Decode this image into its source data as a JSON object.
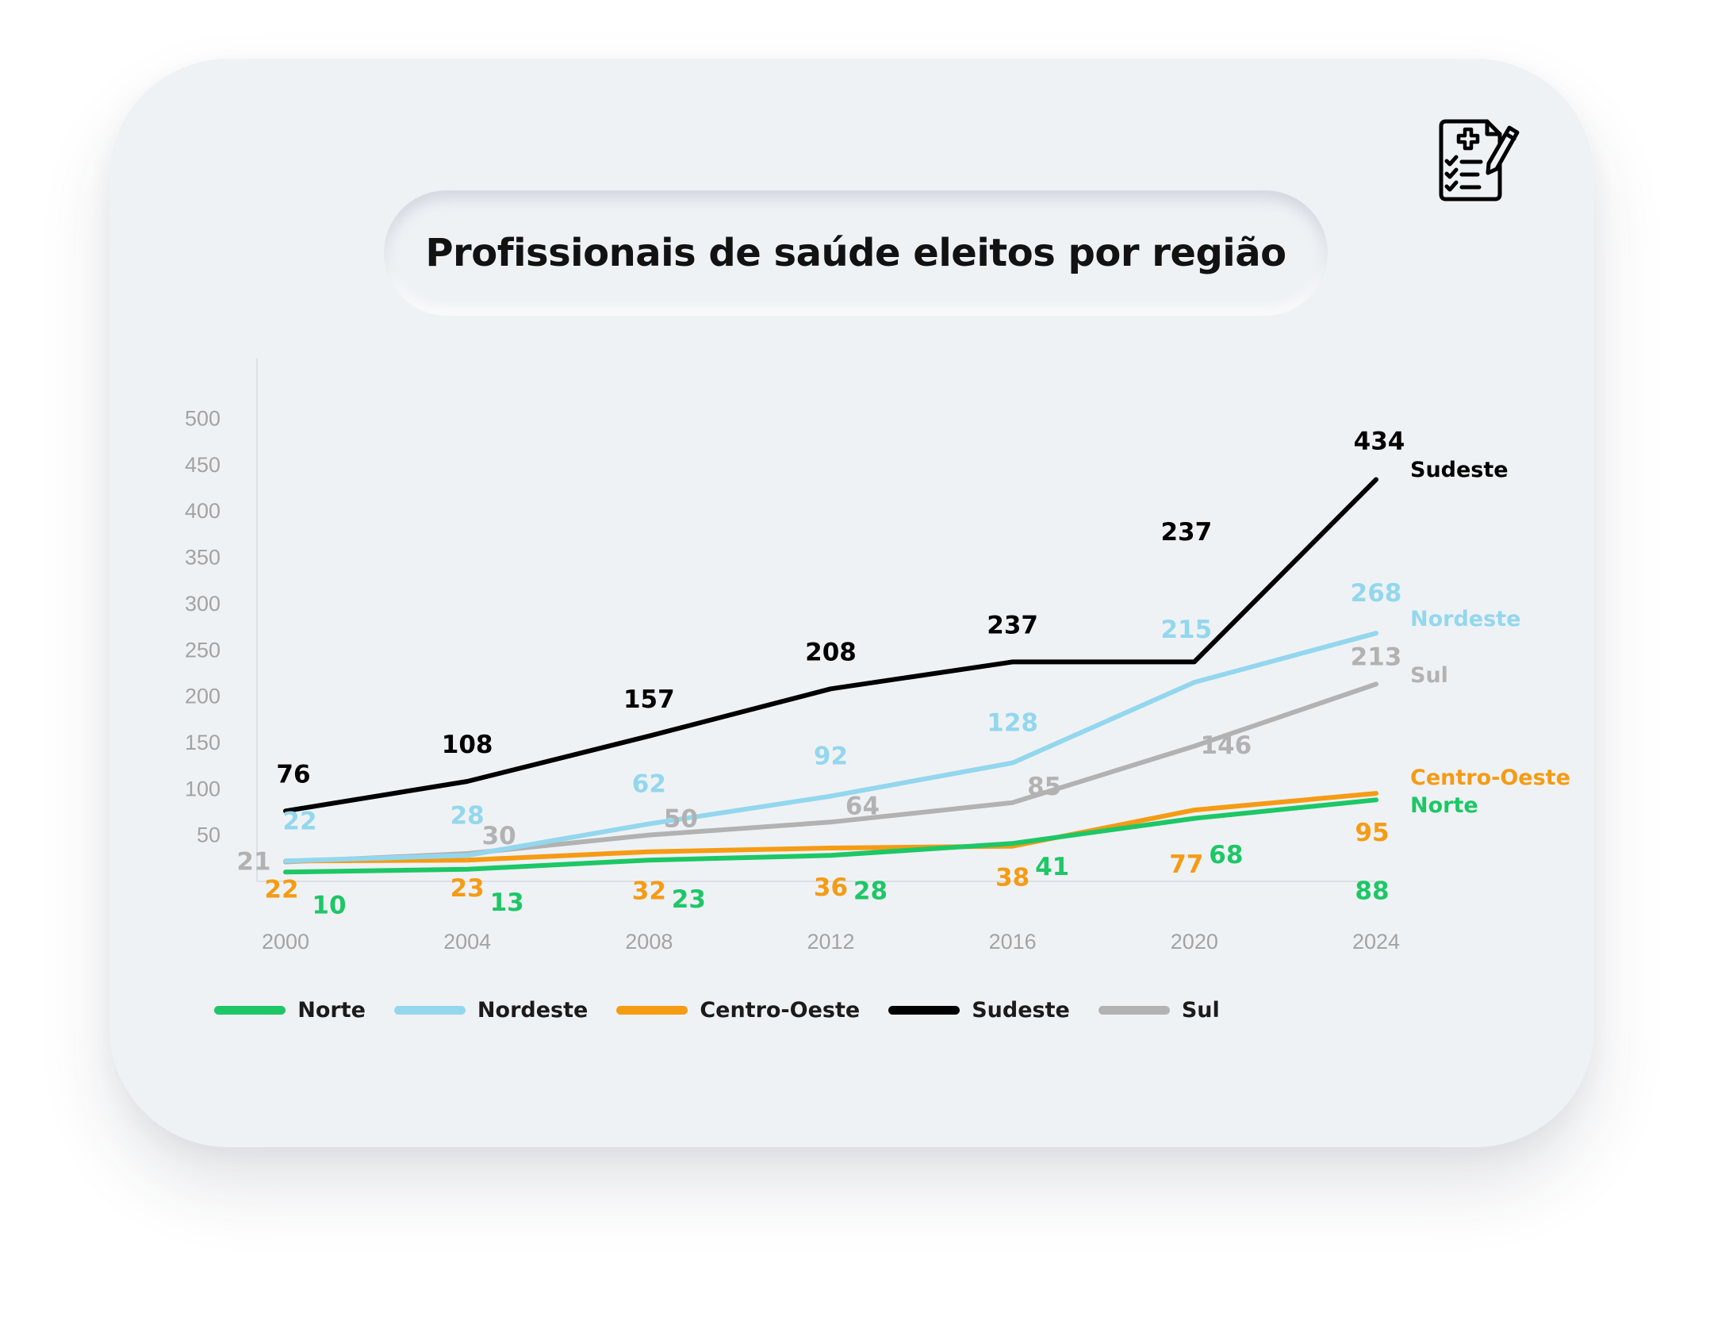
{
  "title": "Profissionais de saúde eleitos por região",
  "icon": "medical-clipboard-icon",
  "colors": {
    "card_bg": "#eff2f5",
    "axis_text": "#a3a3a3",
    "norte": "#1dc766",
    "nordeste": "#93d7ee",
    "centro_oeste": "#f59b14",
    "sudeste": "#000000",
    "sul": "#b2b2b2"
  },
  "legend": [
    {
      "label": "Norte",
      "color": "#1dc766"
    },
    {
      "label": "Nordeste",
      "color": "#93d7ee"
    },
    {
      "label": "Centro-Oeste",
      "color": "#f59b14"
    },
    {
      "label": "Sudeste",
      "color": "#000000"
    },
    {
      "label": "Sul",
      "color": "#b2b2b2"
    }
  ],
  "chart_data": {
    "type": "line",
    "title": "Profissionais de saúde eleitos por região",
    "x": [
      "2000",
      "2004",
      "2008",
      "2012",
      "2016",
      "2020",
      "2024"
    ],
    "y_ticks": [
      50,
      100,
      150,
      200,
      250,
      300,
      350,
      400,
      450,
      500
    ],
    "ylim": [
      0,
      500
    ],
    "grid": false,
    "legend_position": "bottom",
    "series": [
      {
        "name": "Norte",
        "color": "#1dc766",
        "values": [
          10,
          13,
          23,
          28,
          41,
          68,
          88
        ]
      },
      {
        "name": "Nordeste",
        "color": "#93d7ee",
        "values": [
          22,
          28,
          62,
          92,
          128,
          215,
          268
        ]
      },
      {
        "name": "Centro-Oeste",
        "color": "#f59b14",
        "values": [
          22,
          23,
          32,
          36,
          38,
          77,
          95
        ]
      },
      {
        "name": "Sudeste",
        "color": "#000000",
        "values": [
          76,
          108,
          157,
          208,
          237,
          237,
          434
        ]
      },
      {
        "name": "Sul",
        "color": "#b2b2b2",
        "values": [
          21,
          30,
          50,
          64,
          85,
          146,
          213
        ]
      }
    ]
  }
}
